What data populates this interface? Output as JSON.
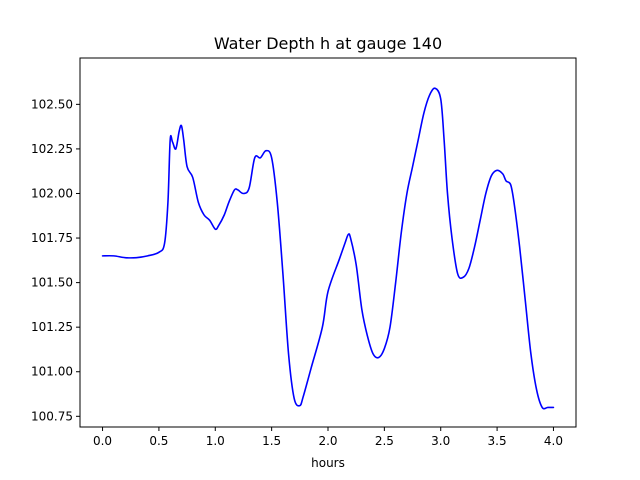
{
  "chart_data": {
    "type": "line",
    "title": "Water Depth h at gauge 140",
    "xlabel": "hours",
    "ylabel": "",
    "xlim": [
      -0.2,
      4.2
    ],
    "ylim": [
      100.69,
      102.76
    ],
    "xticks": [
      "0.0",
      "0.5",
      "1.0",
      "1.5",
      "2.0",
      "2.5",
      "3.0",
      "3.5",
      "4.0"
    ],
    "yticks": [
      "100.75",
      "101.00",
      "101.25",
      "101.50",
      "101.75",
      "102.00",
      "102.25",
      "102.50"
    ],
    "grid": false,
    "series": [
      {
        "color": "#0000ff",
        "x": [
          0.0,
          0.1,
          0.2,
          0.3,
          0.4,
          0.5,
          0.55,
          0.58,
          0.6,
          0.62,
          0.65,
          0.68,
          0.7,
          0.72,
          0.75,
          0.8,
          0.85,
          0.9,
          0.95,
          1.0,
          1.03,
          1.08,
          1.12,
          1.17,
          1.2,
          1.25,
          1.3,
          1.35,
          1.4,
          1.45,
          1.5,
          1.55,
          1.6,
          1.65,
          1.7,
          1.75,
          1.78,
          1.85,
          1.95,
          2.0,
          2.1,
          2.15,
          2.18,
          2.2,
          2.25,
          2.3,
          2.35,
          2.4,
          2.45,
          2.5,
          2.55,
          2.6,
          2.65,
          2.7,
          2.75,
          2.8,
          2.85,
          2.9,
          2.95,
          3.0,
          3.03,
          3.06,
          3.1,
          3.15,
          3.2,
          3.25,
          3.3,
          3.35,
          3.4,
          3.45,
          3.5,
          3.55,
          3.58,
          3.62,
          3.65,
          3.7,
          3.75,
          3.8,
          3.85,
          3.9,
          3.95,
          4.0
        ],
        "y": [
          101.65,
          101.65,
          101.64,
          101.64,
          101.65,
          101.67,
          101.72,
          101.95,
          102.3,
          102.29,
          102.25,
          102.35,
          102.38,
          102.3,
          102.15,
          102.09,
          101.95,
          101.88,
          101.85,
          101.8,
          101.82,
          101.88,
          101.95,
          102.02,
          102.02,
          102.0,
          102.03,
          102.2,
          102.2,
          102.24,
          102.2,
          101.95,
          101.55,
          101.1,
          100.85,
          100.81,
          100.86,
          101.02,
          101.25,
          101.45,
          101.63,
          101.72,
          101.77,
          101.75,
          101.6,
          101.35,
          101.2,
          101.1,
          101.08,
          101.13,
          101.25,
          101.5,
          101.78,
          102.0,
          102.15,
          102.3,
          102.45,
          102.55,
          102.59,
          102.53,
          102.3,
          102.0,
          101.75,
          101.55,
          101.53,
          101.58,
          101.7,
          101.85,
          102.0,
          102.1,
          102.13,
          102.11,
          102.07,
          102.05,
          101.95,
          101.7,
          101.4,
          101.1,
          100.9,
          100.8,
          100.8,
          100.8
        ]
      }
    ]
  }
}
